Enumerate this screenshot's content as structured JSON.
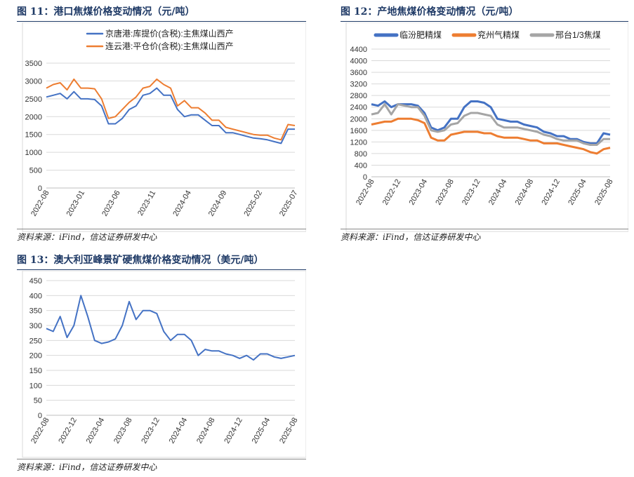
{
  "charts": [
    {
      "id": "fig11",
      "title": "图 11：港口焦煤价格变动情况（元/吨）",
      "source": "资料来源：iFind，信达证券研发中心",
      "chart_data": {
        "type": "line",
        "title": "港口焦煤价格变动情况（元/吨）",
        "xlabel": "",
        "ylabel": "",
        "ylim": [
          0,
          3500
        ],
        "yticks": [
          0,
          500,
          1000,
          1500,
          2000,
          2500,
          3000,
          3500
        ],
        "x_range": [
          "2022-08",
          "2025-08"
        ],
        "xtick_labels": [
          "2022-08",
          "2023-01",
          "2023-06",
          "2023-11",
          "2024-04",
          "2024-09",
          "2025-02",
          "2025-07"
        ],
        "series": [
          {
            "name": "京唐港:库提价(含税):主焦煤山西产",
            "color": "#4472c4",
            "x": [
              0,
              1,
              2,
              3,
              4,
              5,
              6,
              7,
              8,
              9,
              10,
              11,
              12,
              13,
              14,
              15,
              16,
              17,
              18,
              19,
              20,
              21,
              22,
              23,
              24,
              25,
              26,
              27,
              28,
              29,
              30,
              31,
              32,
              33,
              34,
              35,
              36
            ],
            "values": [
              2550,
              2600,
              2650,
              2500,
              2700,
              2500,
              2500,
              2480,
              2300,
              1800,
              1800,
              1950,
              2200,
              2300,
              2600,
              2650,
              2800,
              2600,
              2600,
              2200,
              2000,
              2050,
              2050,
              1900,
              1750,
              1750,
              1550,
              1550,
              1500,
              1450,
              1400,
              1380,
              1350,
              1300,
              1250,
              1650,
              1650
            ]
          },
          {
            "name": "连云港:平仓价(含税):主焦煤山西产",
            "color": "#ed7d31",
            "x": [
              0,
              1,
              2,
              3,
              4,
              5,
              6,
              7,
              8,
              9,
              10,
              11,
              12,
              13,
              14,
              15,
              16,
              17,
              18,
              19,
              20,
              21,
              22,
              23,
              24,
              25,
              26,
              27,
              28,
              29,
              30,
              31,
              32,
              33,
              34,
              35,
              36
            ],
            "values": [
              2800,
              2900,
              2950,
              2750,
              3050,
              2800,
              2800,
              2780,
              2500,
              1950,
              2000,
              2200,
              2400,
              2550,
              2800,
              2850,
              3050,
              2900,
              2800,
              2300,
              2450,
              2250,
              2250,
              2100,
              1900,
              1900,
              1700,
              1650,
              1600,
              1550,
              1500,
              1480,
              1480,
              1400,
              1350,
              1780,
              1750
            ]
          }
        ]
      }
    },
    {
      "id": "fig12",
      "title": "图 12：产地焦煤价格变动情况（元/吨）",
      "source": "资料来源：iFind，信达证券研发中心",
      "chart_data": {
        "type": "line",
        "title": "产地焦煤价格变动情况（元/吨）",
        "xlabel": "",
        "ylabel": "",
        "ylim": [
          0,
          4400
        ],
        "yticks": [
          0,
          400,
          800,
          1200,
          1600,
          2000,
          2400,
          2800,
          3200,
          3600,
          4000,
          4400
        ],
        "x_range": [
          "2022-08",
          "2025-08"
        ],
        "xtick_labels": [
          "2022-08",
          "2022-12",
          "2023-04",
          "2023-08",
          "2023-12",
          "2024-04",
          "2024-08",
          "2024-12",
          "2025-04",
          "2025-08"
        ],
        "series": [
          {
            "name": "临汾肥精煤",
            "color": "#4472c4",
            "x": [
              0,
              1,
              2,
              3,
              4,
              5,
              6,
              7,
              8,
              9,
              10,
              11,
              12,
              13,
              14,
              15,
              16,
              17,
              18,
              19,
              20,
              21,
              22,
              23,
              24,
              25,
              26,
              27,
              28,
              29,
              30,
              31,
              32,
              33,
              34,
              35,
              36
            ],
            "values": [
              2500,
              2450,
              2600,
              2400,
              2500,
              2500,
              2500,
              2450,
              2200,
              1700,
              1600,
              1700,
              2000,
              2000,
              2400,
              2600,
              2600,
              2550,
              2400,
              2000,
              1950,
              1900,
              1900,
              1800,
              1750,
              1700,
              1550,
              1500,
              1400,
              1400,
              1300,
              1300,
              1200,
              1150,
              1150,
              1500,
              1450
            ]
          },
          {
            "name": "兖州气精煤",
            "color": "#ed7d31",
            "x": [
              0,
              1,
              2,
              3,
              4,
              5,
              6,
              7,
              8,
              9,
              10,
              11,
              12,
              13,
              14,
              15,
              16,
              17,
              18,
              19,
              20,
              21,
              22,
              23,
              24,
              25,
              26,
              27,
              28,
              29,
              30,
              31,
              32,
              33,
              34,
              35,
              36
            ],
            "values": [
              1800,
              1850,
              1900,
              1900,
              2000,
              2000,
              2000,
              1950,
              1850,
              1350,
              1250,
              1250,
              1450,
              1500,
              1550,
              1550,
              1550,
              1500,
              1500,
              1400,
              1350,
              1350,
              1350,
              1300,
              1250,
              1250,
              1150,
              1150,
              1150,
              1100,
              1050,
              1000,
              950,
              850,
              800,
              950,
              1000
            ]
          },
          {
            "name": "邢台1/3焦煤",
            "color": "#a5a5a5",
            "x": [
              0,
              1,
              2,
              3,
              4,
              5,
              6,
              7,
              8,
              9,
              10,
              11,
              12,
              13,
              14,
              15,
              16,
              17,
              18,
              19,
              20,
              21,
              22,
              23,
              24,
              25,
              26,
              27,
              28,
              29,
              30,
              31,
              32,
              33,
              34,
              35,
              36
            ],
            "values": [
              2150,
              2200,
              2500,
              2150,
              2500,
              2450,
              2400,
              2400,
              2100,
              1600,
              1550,
              1600,
              1800,
              1850,
              2100,
              2200,
              2200,
              2150,
              2100,
              1800,
              1700,
              1700,
              1700,
              1650,
              1600,
              1550,
              1450,
              1400,
              1300,
              1250,
              1250,
              1250,
              1150,
              1100,
              1100,
              1300,
              1300
            ]
          }
        ]
      }
    },
    {
      "id": "fig13",
      "title": "图 13：澳大利亚峰景矿硬焦煤价格变动情况（美元/吨）",
      "source": "资料来源：iFind，信达证券研发中心",
      "chart_data": {
        "type": "line",
        "title": "澳大利亚峰景矿硬焦煤价格变动情况（美元/吨）",
        "xlabel": "",
        "ylabel": "",
        "ylim": [
          0,
          450
        ],
        "yticks": [
          0,
          50,
          100,
          150,
          200,
          250,
          300,
          350,
          400,
          450
        ],
        "x_range": [
          "2022-08",
          "2025-08"
        ],
        "xtick_labels": [
          "2022-08",
          "2022-12",
          "2023-04",
          "2023-08",
          "2023-12",
          "2024-04",
          "2024-08",
          "2024-12",
          "2025-04",
          "2025-08"
        ],
        "series": [
          {
            "name": "峰景矿硬焦煤",
            "color": "#4472c4",
            "x": [
              0,
              1,
              2,
              3,
              4,
              5,
              6,
              7,
              8,
              9,
              10,
              11,
              12,
              13,
              14,
              15,
              16,
              17,
              18,
              19,
              20,
              21,
              22,
              23,
              24,
              25,
              26,
              27,
              28,
              29,
              30,
              31,
              32,
              33,
              34,
              35,
              36
            ],
            "values": [
              290,
              280,
              330,
              260,
              300,
              400,
              330,
              250,
              240,
              245,
              255,
              300,
              380,
              320,
              350,
              350,
              340,
              280,
              250,
              270,
              270,
              250,
              200,
              220,
              215,
              215,
              205,
              200,
              190,
              200,
              185,
              205,
              205,
              195,
              190,
              195,
              200
            ]
          }
        ]
      }
    }
  ]
}
